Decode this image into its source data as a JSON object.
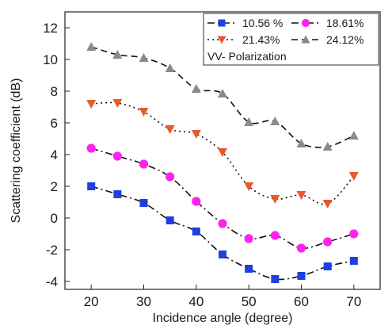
{
  "chart_data": {
    "type": "line",
    "xlabel": "Incidence angle (degree)",
    "ylabel": "Scattering coefficient (dB)",
    "xlim": [
      15,
      75
    ],
    "ylim": [
      -4.5,
      13
    ],
    "xticks": [
      20,
      30,
      40,
      50,
      60,
      70
    ],
    "yticks": [
      -4,
      -2,
      0,
      2,
      4,
      6,
      8,
      10,
      12
    ],
    "x": [
      20,
      25,
      30,
      35,
      40,
      45,
      50,
      55,
      60,
      65,
      70
    ],
    "series": [
      {
        "name": "10.56 %",
        "marker": "square",
        "line_style": "dash-dot",
        "color": "#1f3fe0",
        "values": [
          2.0,
          1.5,
          0.95,
          -0.15,
          -0.85,
          -2.3,
          -3.2,
          -3.85,
          -3.65,
          -3.05,
          -2.7
        ]
      },
      {
        "name": "18.61%",
        "marker": "circle",
        "line_style": "dash-dot",
        "color": "#ff22ee",
        "values": [
          4.4,
          3.9,
          3.4,
          2.6,
          1.05,
          -0.35,
          -1.3,
          -1.1,
          -1.9,
          -1.5,
          -1.0
        ]
      },
      {
        "name": "21.43%",
        "marker": "triangle-down",
        "line_style": "dotted",
        "color": "#e85a2a",
        "values": [
          7.2,
          7.25,
          6.7,
          5.6,
          5.3,
          4.15,
          2.0,
          1.2,
          1.45,
          0.9,
          2.65
        ]
      },
      {
        "name": "24.12%",
        "marker": "triangle-up",
        "line_style": "dashed",
        "color": "#8a8a8a",
        "values": [
          10.8,
          10.3,
          10.1,
          9.45,
          8.15,
          7.85,
          6.05,
          6.1,
          4.7,
          4.5,
          5.2
        ]
      }
    ],
    "annotation": "VV- Polarization",
    "legend_position": "top-right",
    "grid": false
  }
}
